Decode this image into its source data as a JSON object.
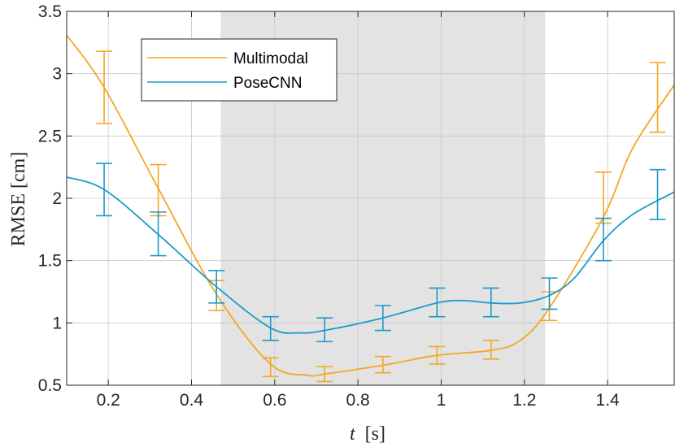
{
  "chart_data": {
    "type": "line",
    "xlabel_var": "t",
    "xlabel_unit": "[s]",
    "ylabel": "RMSE [cm]",
    "xlim": [
      0.1,
      1.56
    ],
    "ylim": [
      0.5,
      3.5
    ],
    "xticks": [
      0.2,
      0.4,
      0.6,
      0.8,
      1,
      1.2,
      1.4
    ],
    "xtick_labels": [
      "0.2",
      "0.4",
      "0.6",
      "0.8",
      "1",
      "1.2",
      "1.4"
    ],
    "yticks": [
      0.5,
      1,
      1.5,
      2,
      2.5,
      3,
      3.5
    ],
    "ytick_labels": [
      "0.5",
      "1",
      "1.5",
      "2",
      "2.5",
      "3",
      "3.5"
    ],
    "grid": true,
    "legend_position": "top-left",
    "shaded_region": {
      "x_start": 0.47,
      "x_end": 1.25,
      "color": "#e3e3e3"
    },
    "series": [
      {
        "name": "Multimodal",
        "color": "#f5a623",
        "line_x": [
          0.1,
          0.19,
          0.32,
          0.46,
          0.59,
          0.68,
          0.72,
          0.86,
          0.99,
          1.12,
          1.19,
          1.26,
          1.39,
          1.46,
          1.56
        ],
        "line_y": [
          3.31,
          2.89,
          2.08,
          1.23,
          0.67,
          0.58,
          0.59,
          0.66,
          0.74,
          0.78,
          0.86,
          1.12,
          1.85,
          2.4,
          2.91
        ],
        "errorbars": [
          {
            "x": 0.19,
            "y": 2.89,
            "low": 2.6,
            "high": 3.18
          },
          {
            "x": 0.32,
            "y": 2.06,
            "low": 1.86,
            "high": 2.27
          },
          {
            "x": 0.46,
            "y": 1.22,
            "low": 1.1,
            "high": 1.34
          },
          {
            "x": 0.59,
            "y": 0.64,
            "low": 0.57,
            "high": 0.72
          },
          {
            "x": 0.72,
            "y": 0.59,
            "low": 0.53,
            "high": 0.65
          },
          {
            "x": 0.86,
            "y": 0.66,
            "low": 0.6,
            "high": 0.73
          },
          {
            "x": 0.99,
            "y": 0.74,
            "low": 0.67,
            "high": 0.81
          },
          {
            "x": 1.12,
            "y": 0.79,
            "low": 0.71,
            "high": 0.86
          },
          {
            "x": 1.26,
            "y": 1.13,
            "low": 1.02,
            "high": 1.25
          },
          {
            "x": 1.39,
            "y": 2.0,
            "low": 1.8,
            "high": 2.21
          },
          {
            "x": 1.52,
            "y": 2.81,
            "low": 2.53,
            "high": 3.09
          }
        ]
      },
      {
        "name": "PoseCNN",
        "color": "#1b9ac9",
        "line_x": [
          0.1,
          0.19,
          0.32,
          0.46,
          0.59,
          0.66,
          0.72,
          0.86,
          0.99,
          1.05,
          1.12,
          1.19,
          1.26,
          1.32,
          1.39,
          1.46,
          1.56
        ],
        "line_y": [
          2.17,
          2.07,
          1.71,
          1.29,
          0.96,
          0.92,
          0.94,
          1.04,
          1.16,
          1.18,
          1.16,
          1.16,
          1.22,
          1.36,
          1.66,
          1.87,
          2.05
        ],
        "errorbars": [
          {
            "x": 0.19,
            "y": 2.07,
            "low": 1.86,
            "high": 2.28
          },
          {
            "x": 0.32,
            "y": 1.71,
            "low": 1.54,
            "high": 1.89
          },
          {
            "x": 0.46,
            "y": 1.29,
            "low": 1.16,
            "high": 1.42
          },
          {
            "x": 0.59,
            "y": 0.96,
            "low": 0.86,
            "high": 1.05
          },
          {
            "x": 0.72,
            "y": 0.94,
            "low": 0.85,
            "high": 1.04
          },
          {
            "x": 0.86,
            "y": 1.04,
            "low": 0.94,
            "high": 1.14
          },
          {
            "x": 0.99,
            "y": 1.17,
            "low": 1.05,
            "high": 1.28
          },
          {
            "x": 1.12,
            "y": 1.16,
            "low": 1.05,
            "high": 1.28
          },
          {
            "x": 1.26,
            "y": 1.24,
            "low": 1.11,
            "high": 1.36
          },
          {
            "x": 1.39,
            "y": 1.67,
            "low": 1.5,
            "high": 1.84
          },
          {
            "x": 1.52,
            "y": 2.03,
            "low": 1.83,
            "high": 2.23
          }
        ]
      }
    ]
  }
}
